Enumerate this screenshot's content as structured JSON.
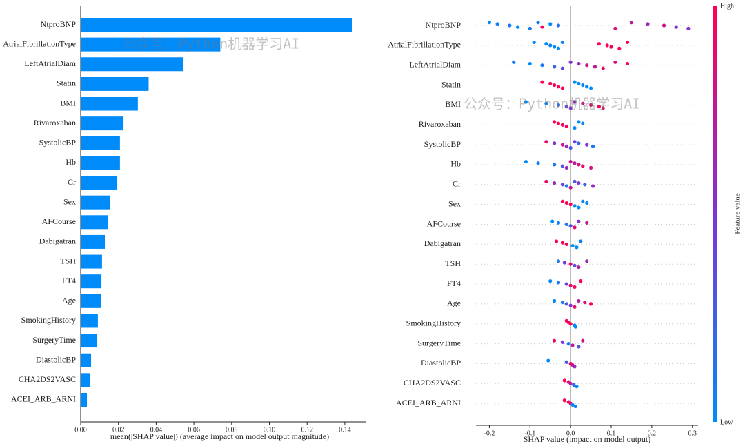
{
  "watermark": "公众号：Python机器学习AI",
  "chart_data": [
    {
      "type": "bar",
      "orientation": "horizontal",
      "color": "#008bfb",
      "xlabel": "mean(|SHAP value|) (average impact on model output magnitude)",
      "categories": [
        "NtproBNP",
        "AtrialFibrillationType",
        "LeftAtrialDiam",
        "Statin",
        "BMI",
        "Rivaroxaban",
        "SystolicBP",
        "Hb",
        "Cr",
        "Sex",
        "AFCourse",
        "Dabigatran",
        "TSH",
        "FT4",
        "Age",
        "SmokingHistory",
        "SurgeryTime",
        "DiastolicBP",
        "CHA2DS2VASC",
        "ACEI_ARB_ARNI"
      ],
      "values": [
        0.144,
        0.074,
        0.0545,
        0.036,
        0.0303,
        0.0227,
        0.0208,
        0.0208,
        0.0194,
        0.0154,
        0.0143,
        0.0128,
        0.0113,
        0.011,
        0.0106,
        0.0091,
        0.0088,
        0.0055,
        0.0048,
        0.0033
      ],
      "xlim": [
        0,
        0.151
      ],
      "xticks": [
        {
          "value": 0,
          "label": "0.00"
        },
        {
          "value": 0.02,
          "label": "0.02"
        },
        {
          "value": 0.04,
          "label": "0.04"
        },
        {
          "value": 0.06,
          "label": "0.06"
        },
        {
          "value": 0.08,
          "label": "0.08"
        },
        {
          "value": 0.1,
          "label": "0.10"
        },
        {
          "value": 0.12,
          "label": "0.12"
        },
        {
          "value": 0.14,
          "label": "0.14"
        }
      ]
    },
    {
      "type": "beeswarm",
      "xlabel": "SHAP value (impact on model output)",
      "colorbar_label": "Feature value",
      "colorbar_high": "High",
      "colorbar_low": "Low",
      "colormap": [
        "#008bfb",
        "#7f33d6",
        "#ff0052"
      ],
      "categories": [
        "NtproBNP",
        "AtrialFibrillationType",
        "LeftAtrialDiam",
        "Statin",
        "BMI",
        "Rivaroxaban",
        "SystolicBP",
        "Hb",
        "Cr",
        "Sex",
        "AFCourse",
        "Dabigatran",
        "TSH",
        "FT4",
        "Age",
        "SmokingHistory",
        "SurgeryTime",
        "DiastolicBP",
        "CHA2DS2VASC",
        "ACEI_ARB_ARNI"
      ],
      "points": [
        {
          "x": [
            -0.2,
            -0.18,
            -0.15,
            -0.13,
            -0.1,
            -0.08,
            -0.05,
            -0.03,
            -0.07,
            0.11,
            0.15,
            0.19,
            0.23,
            0.26,
            0.29
          ],
          "c": [
            0,
            0.05,
            0.1,
            0,
            0.1,
            0.05,
            0,
            0.15,
            0.95,
            0.9,
            0.7,
            0.6,
            0.8,
            0.5,
            0.55
          ]
        },
        {
          "x": [
            -0.09,
            -0.06,
            -0.05,
            -0.04,
            -0.03,
            -0.02,
            0.07,
            0.09,
            0.1,
            0.12,
            0.14
          ],
          "c": [
            0,
            0,
            0.05,
            0,
            0,
            0.05,
            1,
            1,
            0.95,
            1,
            1
          ]
        },
        {
          "x": [
            -0.14,
            -0.1,
            -0.07,
            -0.04,
            -0.02,
            0,
            0.02,
            0.04,
            0.06,
            0.08,
            0.11,
            0.14
          ],
          "c": [
            0.05,
            0,
            0.1,
            0.2,
            0.4,
            0.5,
            0.6,
            0.8,
            0.75,
            0.9,
            0.85,
            0.95
          ]
        },
        {
          "x": [
            -0.07,
            -0.05,
            -0.04,
            -0.03,
            -0.02,
            0.01,
            0.02,
            0.03,
            0.04,
            0.05
          ],
          "c": [
            1,
            1,
            0.95,
            1,
            1,
            0,
            0,
            0.05,
            0,
            0
          ]
        },
        {
          "x": [
            -0.11,
            -0.06,
            -0.03,
            -0.01,
            0,
            0.01,
            0.03,
            0.05,
            0.07,
            0.08
          ],
          "c": [
            0,
            0.05,
            0.2,
            0.4,
            0.5,
            0.6,
            0.8,
            0.9,
            1,
            0.95
          ]
        },
        {
          "x": [
            -0.04,
            -0.03,
            -0.02,
            -0.01,
            0.01,
            0.02,
            0.03
          ],
          "c": [
            1,
            1,
            0.95,
            1,
            0,
            0,
            0.05
          ]
        },
        {
          "x": [
            -0.06,
            -0.04,
            -0.02,
            -0.01,
            0,
            0.01,
            0.02,
            0.04,
            0.055
          ],
          "c": [
            0.9,
            0.5,
            0.8,
            0.6,
            0.3,
            0.4,
            0.2,
            0.5,
            0.1
          ]
        },
        {
          "x": [
            -0.11,
            -0.08,
            -0.04,
            -0.02,
            -0.01,
            0,
            0.01,
            0.02,
            0.03,
            0.05
          ],
          "c": [
            0,
            0.05,
            0.1,
            0.3,
            0.6,
            0.8,
            0.7,
            0.85,
            0.9,
            0.8
          ]
        },
        {
          "x": [
            -0.06,
            -0.04,
            -0.02,
            -0.01,
            0,
            0.01,
            0.02,
            0.035,
            0.055
          ],
          "c": [
            0.9,
            0.6,
            0.4,
            0.1,
            0.8,
            0.3,
            0.5,
            0.2,
            0.6
          ]
        },
        {
          "x": [
            -0.02,
            -0.01,
            0,
            0.01,
            0.02,
            0.03,
            0.04
          ],
          "c": [
            1,
            1,
            0.95,
            0,
            0,
            0.05,
            0
          ]
        },
        {
          "x": [
            -0.045,
            -0.03,
            -0.01,
            0,
            0.01,
            0.02,
            0.04
          ],
          "c": [
            0,
            0.05,
            0.1,
            0.3,
            0.9,
            0.5,
            0.8
          ]
        },
        {
          "x": [
            -0.035,
            -0.02,
            -0.01,
            0.005,
            0.015,
            0.025
          ],
          "c": [
            1,
            1,
            0.95,
            0,
            0,
            0.05
          ]
        },
        {
          "x": [
            -0.03,
            -0.015,
            0,
            0.01,
            0.02,
            0.04
          ],
          "c": [
            0.1,
            0.5,
            0.9,
            0.3,
            0.7,
            0.6
          ]
        },
        {
          "x": [
            -0.05,
            -0.03,
            -0.01,
            0,
            0.01,
            0.025
          ],
          "c": [
            0,
            0.1,
            0.4,
            0.9,
            0.95,
            1
          ]
        },
        {
          "x": [
            -0.04,
            -0.02,
            -0.01,
            0,
            0.01,
            0.02,
            0.035,
            0.05
          ],
          "c": [
            0,
            0.1,
            0.3,
            0.5,
            0.9,
            0.7,
            0.85,
            1
          ]
        },
        {
          "x": [
            -0.01,
            -0.005,
            0,
            0.01,
            0.012
          ],
          "c": [
            1,
            0.95,
            1,
            0,
            0
          ]
        },
        {
          "x": [
            -0.04,
            -0.02,
            -0.005,
            0.005,
            0.02,
            0.03
          ],
          "c": [
            0.9,
            0.5,
            0.1,
            0.7,
            0.3,
            0.8
          ]
        },
        {
          "x": [
            -0.055,
            -0.01,
            0,
            0.005,
            0.01
          ],
          "c": [
            0,
            0.3,
            0.95,
            0.8,
            0.6
          ]
        },
        {
          "x": [
            -0.015,
            -0.005,
            0,
            0.008,
            0.015
          ],
          "c": [
            1,
            0.9,
            0.7,
            0.2,
            0
          ]
        },
        {
          "x": [
            -0.015,
            -0.005,
            0,
            0.005,
            0.012
          ],
          "c": [
            1,
            0.9,
            0.95,
            0,
            0.05
          ]
        }
      ],
      "xlim": [
        -0.233,
        0.314
      ],
      "xticks": [
        -0.2,
        -0.1,
        {
          "value": 0,
          "label": "0.0"
        },
        0.1,
        0.2,
        0.3
      ]
    }
  ]
}
